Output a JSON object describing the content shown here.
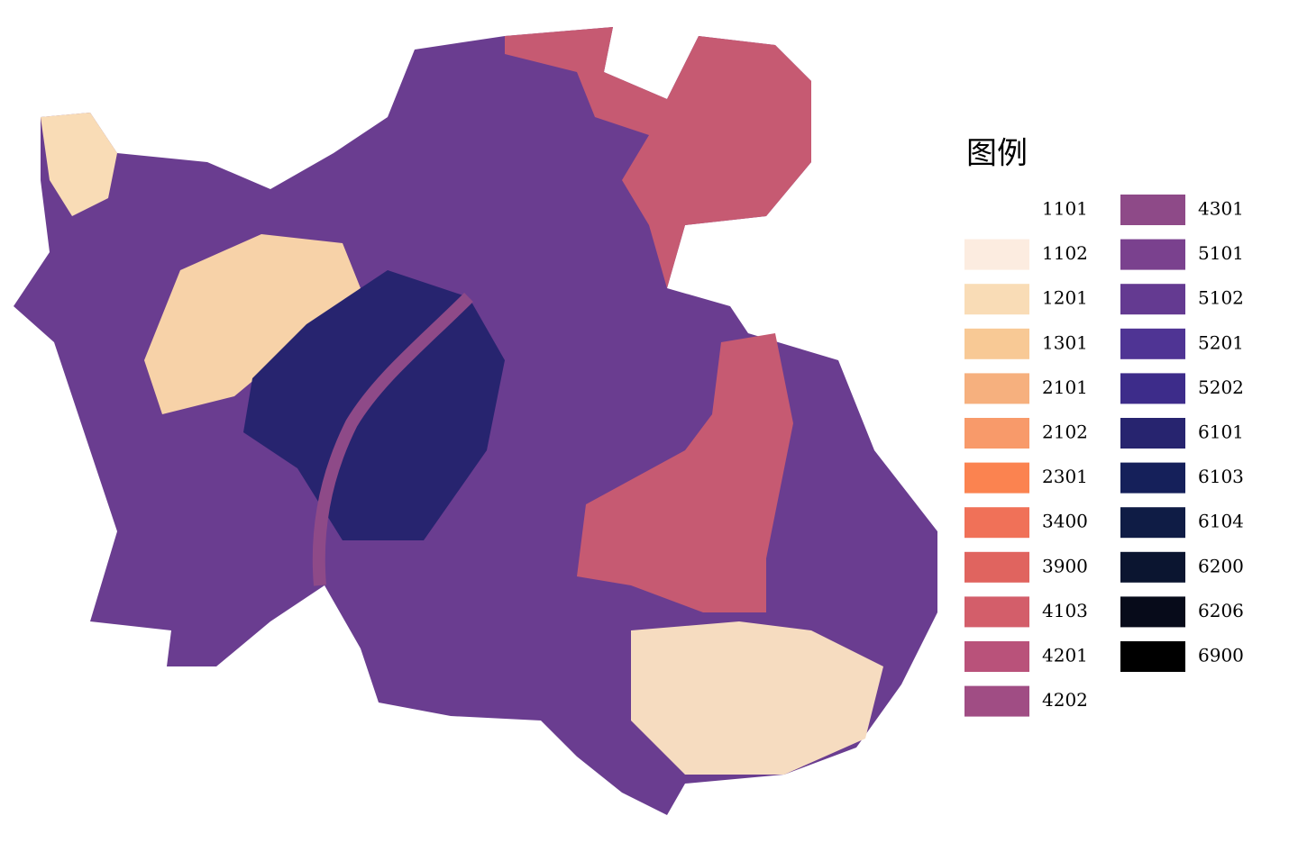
{
  "legend": {
    "title": "图例",
    "items": [
      {
        "label": "1101",
        "color": "#ffffff"
      },
      {
        "label": "1102",
        "color": "#fcece0"
      },
      {
        "label": "1201",
        "color": "#f9dcb6"
      },
      {
        "label": "1301",
        "color": "#f8c995"
      },
      {
        "label": "2101",
        "color": "#f6b07e"
      },
      {
        "label": "2102",
        "color": "#f89a6a"
      },
      {
        "label": "2301",
        "color": "#fb8350"
      },
      {
        "label": "3400",
        "color": "#f07158"
      },
      {
        "label": "3900",
        "color": "#e0645f"
      },
      {
        "label": "4103",
        "color": "#d35e6a"
      },
      {
        "label": "4201",
        "color": "#b9527a"
      },
      {
        "label": "4202",
        "color": "#a04d84"
      },
      {
        "label": "4301",
        "color": "#8e4a88"
      },
      {
        "label": "5101",
        "color": "#7a418e"
      },
      {
        "label": "5102",
        "color": "#643a91"
      },
      {
        "label": "5201",
        "color": "#4f3494"
      },
      {
        "label": "5202",
        "color": "#3d2c8a"
      },
      {
        "label": "6101",
        "color": "#27246f"
      },
      {
        "label": "6103",
        "color": "#15205a"
      },
      {
        "label": "6104",
        "color": "#0f1c45"
      },
      {
        "label": "6200",
        "color": "#0b1530"
      },
      {
        "label": "6206",
        "color": "#070b1a"
      },
      {
        "label": "6900",
        "color": "#000000"
      }
    ]
  }
}
